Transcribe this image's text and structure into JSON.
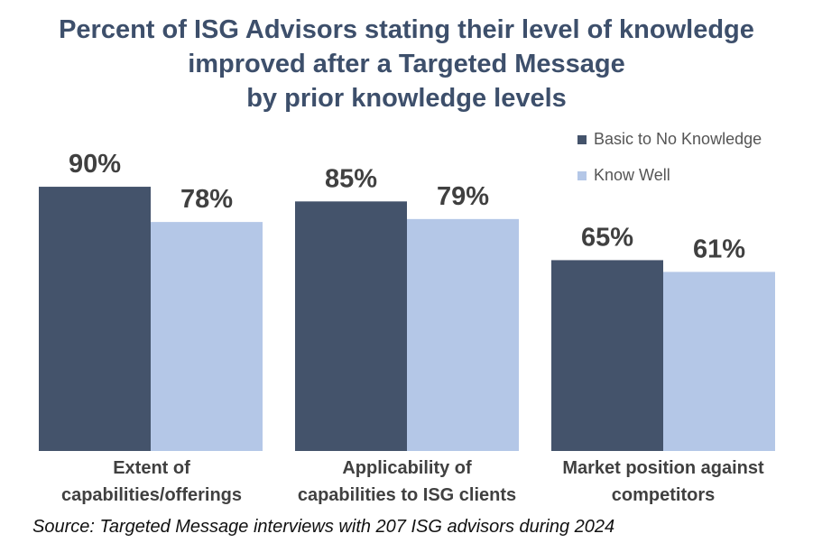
{
  "chart_data": {
    "type": "bar",
    "title_lines": [
      "Percent of ISG Advisors stating their level of knowledge",
      "improved after a Targeted Message",
      "by prior knowledge levels"
    ],
    "categories": [
      [
        "Extent of",
        "capabilities/offerings"
      ],
      [
        "Applicability of",
        "capabilities to ISG clients"
      ],
      [
        "Market position against",
        "competitors"
      ]
    ],
    "series": [
      {
        "name": "Basic to No Knowledge",
        "values": [
          90,
          85,
          65
        ],
        "labels": [
          "90%",
          "85%",
          "65%"
        ],
        "color": "#44536b"
      },
      {
        "name": "Know Well",
        "values": [
          78,
          79,
          61
        ],
        "labels": [
          "78%",
          "79%",
          "61%"
        ],
        "color": "#b4c7e7"
      }
    ],
    "ylim": [
      0,
      100
    ],
    "grid": false,
    "legend_position": "top-right"
  },
  "source": "Source: Targeted Message interviews with 207 ISG advisors during 2024"
}
